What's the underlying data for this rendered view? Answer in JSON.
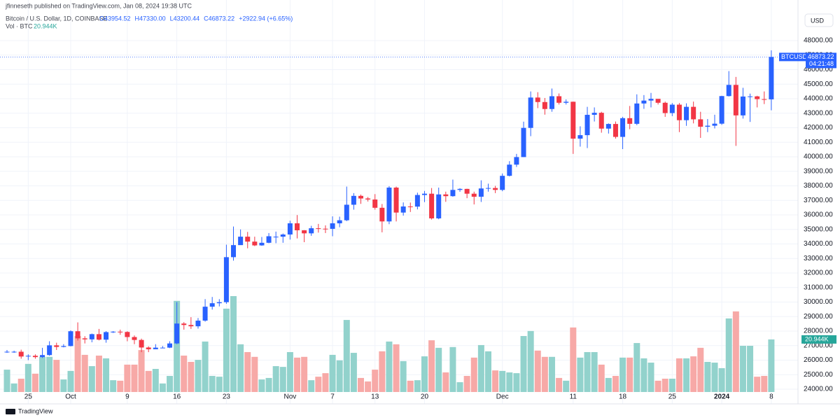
{
  "header": {
    "byline": "jfinneseth published on TradingView.com, Jan 08, 2024 19:38 UTC",
    "symbol": "Bitcoin / U.S. Dollar, 1D, COINBASE",
    "ohlc": [
      "O43954.52",
      "H47330.00",
      "L43200.44",
      "C46873.22",
      "+2922.94 (+6.65%)"
    ],
    "volume_title": "Vol · BTC",
    "currency": "USD",
    "brand": "TradingView"
  },
  "chart_data": {
    "type": "candlestick",
    "symbol_tag": "BTCUSD",
    "countdown": "04:21:48",
    "volume_label": "20.944K",
    "up_color": "#2962ff",
    "down_color": "#f23645",
    "volume_up_color": "#92d2cc",
    "volume_down_color": "#f7a9a7",
    "grid": true,
    "categories": [
      null,
      null,
      null,
      "25",
      null,
      null,
      null,
      null,
      null,
      "Oct",
      null,
      null,
      null,
      null,
      null,
      null,
      null,
      "9",
      null,
      null,
      null,
      null,
      null,
      null,
      "16",
      null,
      null,
      null,
      null,
      null,
      null,
      "23",
      null,
      null,
      null,
      null,
      null,
      null,
      null,
      null,
      "Nov",
      null,
      null,
      null,
      null,
      null,
      "7",
      null,
      null,
      null,
      null,
      null,
      "13",
      null,
      null,
      null,
      null,
      null,
      null,
      "20",
      null,
      null,
      null,
      null,
      null,
      null,
      null,
      null,
      null,
      null,
      "Dec",
      null,
      null,
      null,
      null,
      null,
      null,
      null,
      null,
      null,
      "11",
      null,
      null,
      null,
      null,
      null,
      null,
      "18",
      null,
      null,
      null,
      null,
      null,
      null,
      "25",
      null,
      null,
      null,
      null,
      null,
      null,
      "2024",
      null,
      null,
      null,
      null,
      null,
      null,
      "8"
    ],
    "open": [
      26570,
      26580,
      26580,
      26250,
      26300,
      26210,
      26350,
      27020,
      26910,
      26970,
      27990,
      27500,
      27430,
      27790,
      27410,
      27930,
      27960,
      27940,
      27590,
      27390,
      26870,
      26750,
      26860,
      26860,
      27150,
      28520,
      28420,
      28330,
      28720,
      29680,
      29920,
      29990,
      33090,
      33920,
      34500,
      34160,
      33900,
      34080,
      34500,
      34500,
      34650,
      35420,
      34940,
      34730,
      35080,
      35050,
      35040,
      35420,
      35630,
      36700,
      37310,
      37130,
      37060,
      36490,
      35550,
      37880,
      36160,
      36580,
      36570,
      37370,
      37460,
      35760,
      37410,
      37290,
      37720,
      37790,
      37460,
      37250,
      37820,
      37850,
      37720,
      38690,
      39460,
      39980,
      41990,
      44080,
      43770,
      43290,
      44170,
      43720,
      43790,
      41250,
      41490,
      42890,
      43030,
      41940,
      42260,
      41370,
      42660,
      42270,
      43670,
      43870,
      43990,
      43720,
      43010,
      43590,
      42520,
      43440,
      42580,
      42070,
      42140,
      42280,
      44180,
      44950,
      42850,
      44150,
      44160,
      43970,
      43954.52
    ],
    "high": [
      26700,
      26650,
      26720,
      26400,
      26400,
      26850,
      27300,
      27200,
      27100,
      28050,
      28600,
      27650,
      27830,
      28150,
      28000,
      28000,
      28100,
      27990,
      27700,
      27480,
      26950,
      27100,
      26970,
      27300,
      30000,
      28620,
      28960,
      28900,
      30200,
      30350,
      30200,
      33950,
      35200,
      35000,
      34830,
      34500,
      34480,
      34750,
      34850,
      34720,
      35600,
      35990,
      34950,
      35250,
      35380,
      35280,
      35900,
      35880,
      37950,
      37500,
      37400,
      37230,
      37430,
      36750,
      37980,
      37950,
      36860,
      36850,
      37530,
      37650,
      37850,
      37880,
      37600,
      38430,
      37840,
      37800,
      37600,
      38380,
      38150,
      38000,
      38850,
      39700,
      40200,
      42420,
      44500,
      44450,
      44050,
      44700,
      44360,
      43950,
      43800,
      42100,
      43440,
      43400,
      43100,
      42300,
      42430,
      42750,
      43500,
      44300,
      44250,
      44400,
      43950,
      43800,
      43700,
      43700,
      43680,
      43800,
      43100,
      42600,
      42900,
      44200,
      45900,
      45500,
      44750,
      44350,
      44200,
      44500,
      47330
    ],
    "low": [
      26500,
      26500,
      26100,
      26000,
      26100,
      26150,
      26300,
      26700,
      26880,
      26950,
      27350,
      27150,
      27230,
      27360,
      27200,
      27870,
      27750,
      27300,
      27100,
      26550,
      26550,
      26800,
      26820,
      26830,
      27100,
      28100,
      28150,
      28170,
      28650,
      29480,
      29700,
      29880,
      32850,
      34100,
      33700,
      33850,
      33870,
      34050,
      34050,
      34080,
      34300,
      34380,
      34120,
      34560,
      34780,
      34750,
      34530,
      35150,
      35570,
      36360,
      36760,
      36920,
      36360,
      34800,
      35360,
      35550,
      35950,
      36200,
      36380,
      36880,
      35680,
      35700,
      36900,
      37250,
      37590,
      37150,
      36720,
      36890,
      37600,
      37500,
      37630,
      38650,
      39300,
      39980,
      41420,
      43350,
      42900,
      43100,
      43600,
      43600,
      40200,
      40700,
      40600,
      42430,
      41660,
      41600,
      41250,
      40530,
      41900,
      42180,
      43300,
      43400,
      43600,
      42750,
      42800,
      41700,
      42130,
      42300,
      41300,
      41700,
      41950,
      42200,
      44150,
      40750,
      42630,
      42400,
      43400,
      43630,
      43200.44
    ],
    "close": [
      26580,
      26580,
      26250,
      26300,
      26210,
      26350,
      27020,
      26910,
      26970,
      27990,
      27500,
      27430,
      27790,
      27410,
      27930,
      27960,
      27940,
      27590,
      27390,
      26870,
      26750,
      26860,
      26860,
      27150,
      28520,
      28420,
      28330,
      28720,
      29680,
      29920,
      29990,
      33090,
      33920,
      34500,
      34160,
      33900,
      34080,
      34530,
      34500,
      34650,
      35420,
      34940,
      34730,
      35080,
      35050,
      35040,
      35420,
      35630,
      36700,
      37310,
      37130,
      37060,
      36490,
      35550,
      37880,
      36160,
      36580,
      36570,
      37370,
      37460,
      35760,
      37410,
      37290,
      37720,
      37790,
      37460,
      37250,
      37820,
      37850,
      37720,
      38690,
      39460,
      39980,
      41990,
      44080,
      43770,
      43290,
      44170,
      43720,
      43790,
      41250,
      41490,
      42890,
      43030,
      41940,
      42260,
      41370,
      42660,
      42270,
      43670,
      43870,
      43990,
      43720,
      43010,
      43590,
      42520,
      43440,
      42580,
      42070,
      42140,
      42280,
      44180,
      44950,
      42850,
      44150,
      44160,
      43970,
      43950,
      46873.22
    ],
    "volume": [
      8.9,
      3.4,
      5.3,
      11.2,
      7.3,
      14,
      14,
      12.8,
      5,
      8.4,
      22.3,
      14.8,
      10.3,
      14.5,
      13.4,
      4.7,
      4.5,
      10.9,
      10.9,
      16.7,
      8.4,
      9.2,
      3.4,
      6.4,
      36.3,
      14.5,
      12,
      12.8,
      20.1,
      6.4,
      6.1,
      33.2,
      38.2,
      19,
      15.9,
      14,
      5,
      5.6,
      10.3,
      10,
      15.9,
      13.7,
      14,
      4.7,
      6.1,
      7.5,
      14.8,
      12.6,
      28.7,
      15.6,
      5.6,
      4.2,
      8.9,
      16.2,
      20.1,
      19,
      12.3,
      4.5,
      4.7,
      14.2,
      20.6,
      17.6,
      7.8,
      17.9,
      3.9,
      6.4,
      13.7,
      18.7,
      16.2,
      8.6,
      8.4,
      7.8,
      7.5,
      22.3,
      24.3,
      16.5,
      14,
      14,
      5.6,
      4.5,
      25.7,
      13.7,
      15.9,
      15.9,
      10.9,
      5.6,
      6.4,
      13.7,
      13.7,
      19.5,
      13.4,
      11.7,
      4.5,
      5.3,
      5.3,
      13.4,
      13.4,
      14.2,
      17.6,
      12,
      11.7,
      9.5,
      29.3,
      32.1,
      18.4,
      18.4,
      6.1,
      6.4,
      20.944
    ],
    "ylim": [
      23084,
      50795
    ],
    "yticks": [
      {
        "value": 24000,
        "label": "24000.00"
      },
      {
        "value": 25000,
        "label": "25000.00"
      },
      {
        "value": 26000,
        "label": "26000.00"
      },
      {
        "value": 27000,
        "label": "27000.00"
      },
      {
        "value": 28000,
        "label": "28000.00"
      },
      {
        "value": 29000,
        "label": "29000.00"
      },
      {
        "value": 30000,
        "label": "30000.00"
      },
      {
        "value": 31000,
        "label": "31000.00"
      },
      {
        "value": 32000,
        "label": "32000.00"
      },
      {
        "value": 33000,
        "label": "33000.00"
      },
      {
        "value": 34000,
        "label": "34000.00"
      },
      {
        "value": 35000,
        "label": "35000.00"
      },
      {
        "value": 36000,
        "label": "36000.00"
      },
      {
        "value": 37000,
        "label": "37000.00"
      },
      {
        "value": 38000,
        "label": "38000.00"
      },
      {
        "value": 39000,
        "label": "39000.00"
      },
      {
        "value": 40000,
        "label": "40000.00"
      },
      {
        "value": 41000,
        "label": "41000.00"
      },
      {
        "value": 42000,
        "label": "42000.00"
      },
      {
        "value": 43000,
        "label": "43000.00"
      },
      {
        "value": 44000,
        "label": "44000.00"
      },
      {
        "value": 45000,
        "label": "45000.00"
      },
      {
        "value": 46000,
        "label": "46000.00"
      },
      {
        "value": 47000,
        "label": "47000.00"
      },
      {
        "value": 48000,
        "label": "48000.00"
      }
    ]
  }
}
